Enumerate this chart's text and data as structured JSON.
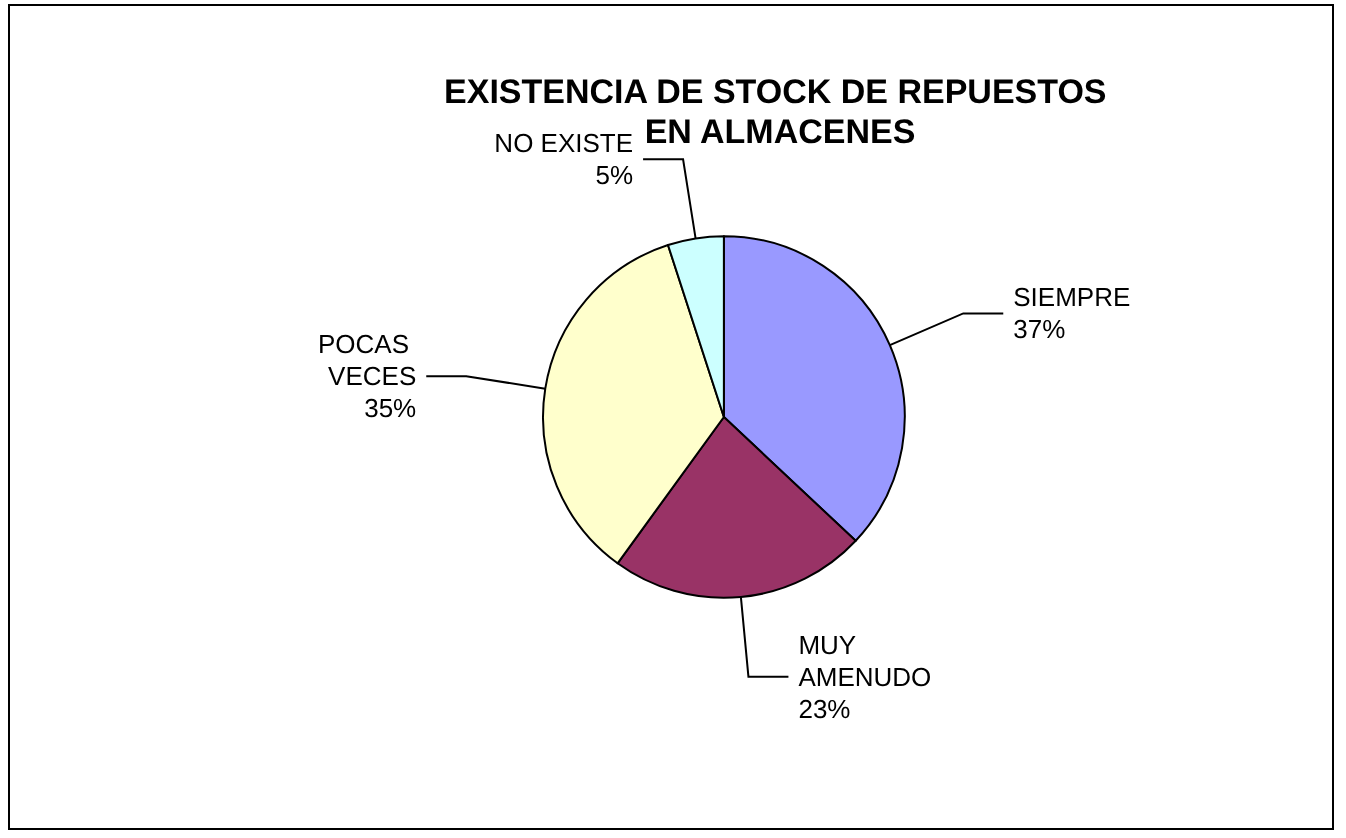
{
  "chart_data": {
    "type": "pie",
    "title": "EXISTENCIA DE STOCK DE REPUESTOS EN ALMACENES",
    "categories": [
      "SIEMPRE",
      "MUY AMENUDO",
      "POCAS VECES",
      "NO EXISTE"
    ],
    "values": [
      37,
      23,
      35,
      5
    ],
    "colors": [
      "#9999ff",
      "#993366",
      "#ffffcc",
      "#ccffff"
    ],
    "value_labels": [
      "37%",
      "23%",
      "35%",
      "5%"
    ]
  }
}
